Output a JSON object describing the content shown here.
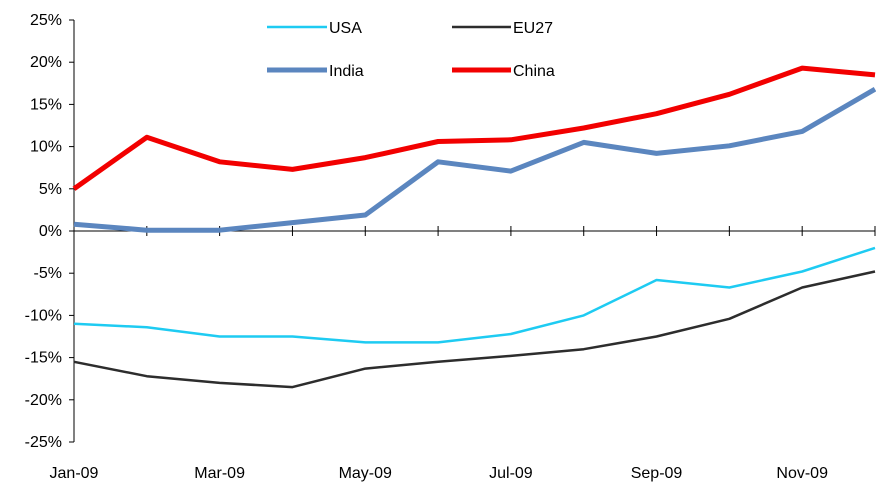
{
  "chart_data": {
    "type": "line",
    "x": [
      "Jan-09",
      "Feb-09",
      "Mar-09",
      "Apr-09",
      "May-09",
      "Jun-09",
      "Jul-09",
      "Aug-09",
      "Sep-09",
      "Oct-09",
      "Nov-09",
      "Dec-09"
    ],
    "x_tick_labels": [
      "Jan-09",
      "Mar-09",
      "May-09",
      "Jul-09",
      "Sep-09",
      "Nov-09"
    ],
    "y_tick_labels": [
      "25%",
      "20%",
      "15%",
      "10%",
      "5%",
      "0%",
      "-5%",
      "-10%",
      "-15%",
      "-20%",
      "-25%"
    ],
    "ylim": [
      -25,
      25
    ],
    "y_unit": "%",
    "grid": false,
    "legend_position": "top",
    "series": [
      {
        "name": "USA",
        "color": "#1ecbf2",
        "width": 2.5,
        "values": [
          -11,
          -11.4,
          -12.5,
          -12.5,
          -13.2,
          -13.2,
          -12.2,
          -10,
          -5.8,
          -6.7,
          -4.8,
          -2
        ]
      },
      {
        "name": "EU27",
        "color": "#2d2d2d",
        "width": 2.5,
        "values": [
          -15.5,
          -17.2,
          -18,
          -18.5,
          -16.3,
          -15.5,
          -14.8,
          -14,
          -12.5,
          -10.4,
          -6.7,
          -4.8
        ]
      },
      {
        "name": "India",
        "color": "#5b86bf",
        "width": 5,
        "values": [
          0.8,
          0.1,
          0.1,
          1,
          1.9,
          8.2,
          7.1,
          10.5,
          9.2,
          10.1,
          11.8,
          16.8
        ]
      },
      {
        "name": "China",
        "color": "#f20000",
        "width": 5,
        "values": [
          5,
          11.1,
          8.2,
          7.3,
          8.7,
          10.6,
          10.8,
          12.2,
          13.9,
          16.2,
          19.3,
          18.5
        ]
      }
    ]
  }
}
